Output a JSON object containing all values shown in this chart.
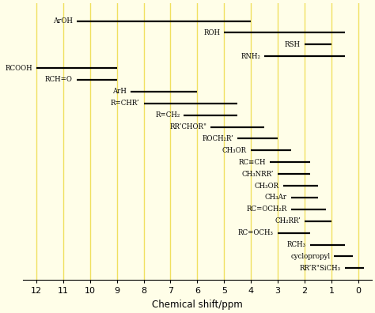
{
  "xlabel": "Chemical shift/ppm",
  "background_color": "#fffee8",
  "grid_color": "#f0e060",
  "ranges": [
    {
      "label": "ArOH",
      "xmin": 4.0,
      "xmax": 10.5,
      "y": 22
    },
    {
      "label": "ROH",
      "xmin": 0.5,
      "xmax": 5.0,
      "y": 21
    },
    {
      "label": "RSH",
      "xmin": 1.0,
      "xmax": 2.0,
      "y": 20
    },
    {
      "label": "RNH₂",
      "xmin": 0.5,
      "xmax": 3.5,
      "y": 19
    },
    {
      "label": "RCOOH",
      "xmin": 9.0,
      "xmax": 12.0,
      "y": 18
    },
    {
      "label": "RCH=O",
      "xmin": 9.0,
      "xmax": 10.5,
      "y": 17
    },
    {
      "label": "ArH",
      "xmin": 6.0,
      "xmax": 8.5,
      "y": 16
    },
    {
      "label": "R=CHR’",
      "xmin": 4.5,
      "xmax": 8.0,
      "y": 15
    },
    {
      "label": "R=CH₂",
      "xmin": 4.5,
      "xmax": 6.5,
      "y": 14
    },
    {
      "label": "RR’CHOR\"",
      "xmin": 3.5,
      "xmax": 5.5,
      "y": 13
    },
    {
      "label": "ROCH₂R’",
      "xmin": 3.0,
      "xmax": 4.5,
      "y": 12
    },
    {
      "label": "CH₃OR",
      "xmin": 2.5,
      "xmax": 4.0,
      "y": 11
    },
    {
      "label": "RC≡CH",
      "xmin": 1.8,
      "xmax": 3.3,
      "y": 10
    },
    {
      "label": "CH₃NRR’",
      "xmin": 1.8,
      "xmax": 3.0,
      "y": 9
    },
    {
      "label": "CH₃OR",
      "xmin": 1.5,
      "xmax": 2.8,
      "y": 8
    },
    {
      "label": "CH₃Ar",
      "xmin": 1.5,
      "xmax": 2.5,
      "y": 7
    },
    {
      "label": "RC=OCH₂R",
      "xmin": 1.2,
      "xmax": 2.5,
      "y": 6
    },
    {
      "label": "CH₂RR’",
      "xmin": 1.0,
      "xmax": 2.0,
      "y": 5
    },
    {
      "label": "RC=OCH₃",
      "xmin": 1.8,
      "xmax": 3.0,
      "y": 4
    },
    {
      "label": "RCH₃",
      "xmin": 0.5,
      "xmax": 1.8,
      "y": 3
    },
    {
      "label": "cyclopropyl",
      "xmin": 0.2,
      "xmax": 0.9,
      "y": 2
    },
    {
      "label": "RR’R\"SiCH₃",
      "xmin": -0.2,
      "xmax": 0.5,
      "y": 1
    }
  ],
  "xlim_left": 12.5,
  "xlim_right": -0.5,
  "ylim": [
    0,
    23.5
  ],
  "figsize": [
    4.74,
    3.96
  ],
  "dpi": 100,
  "line_lw": 1.6,
  "fontsize": 6.2
}
